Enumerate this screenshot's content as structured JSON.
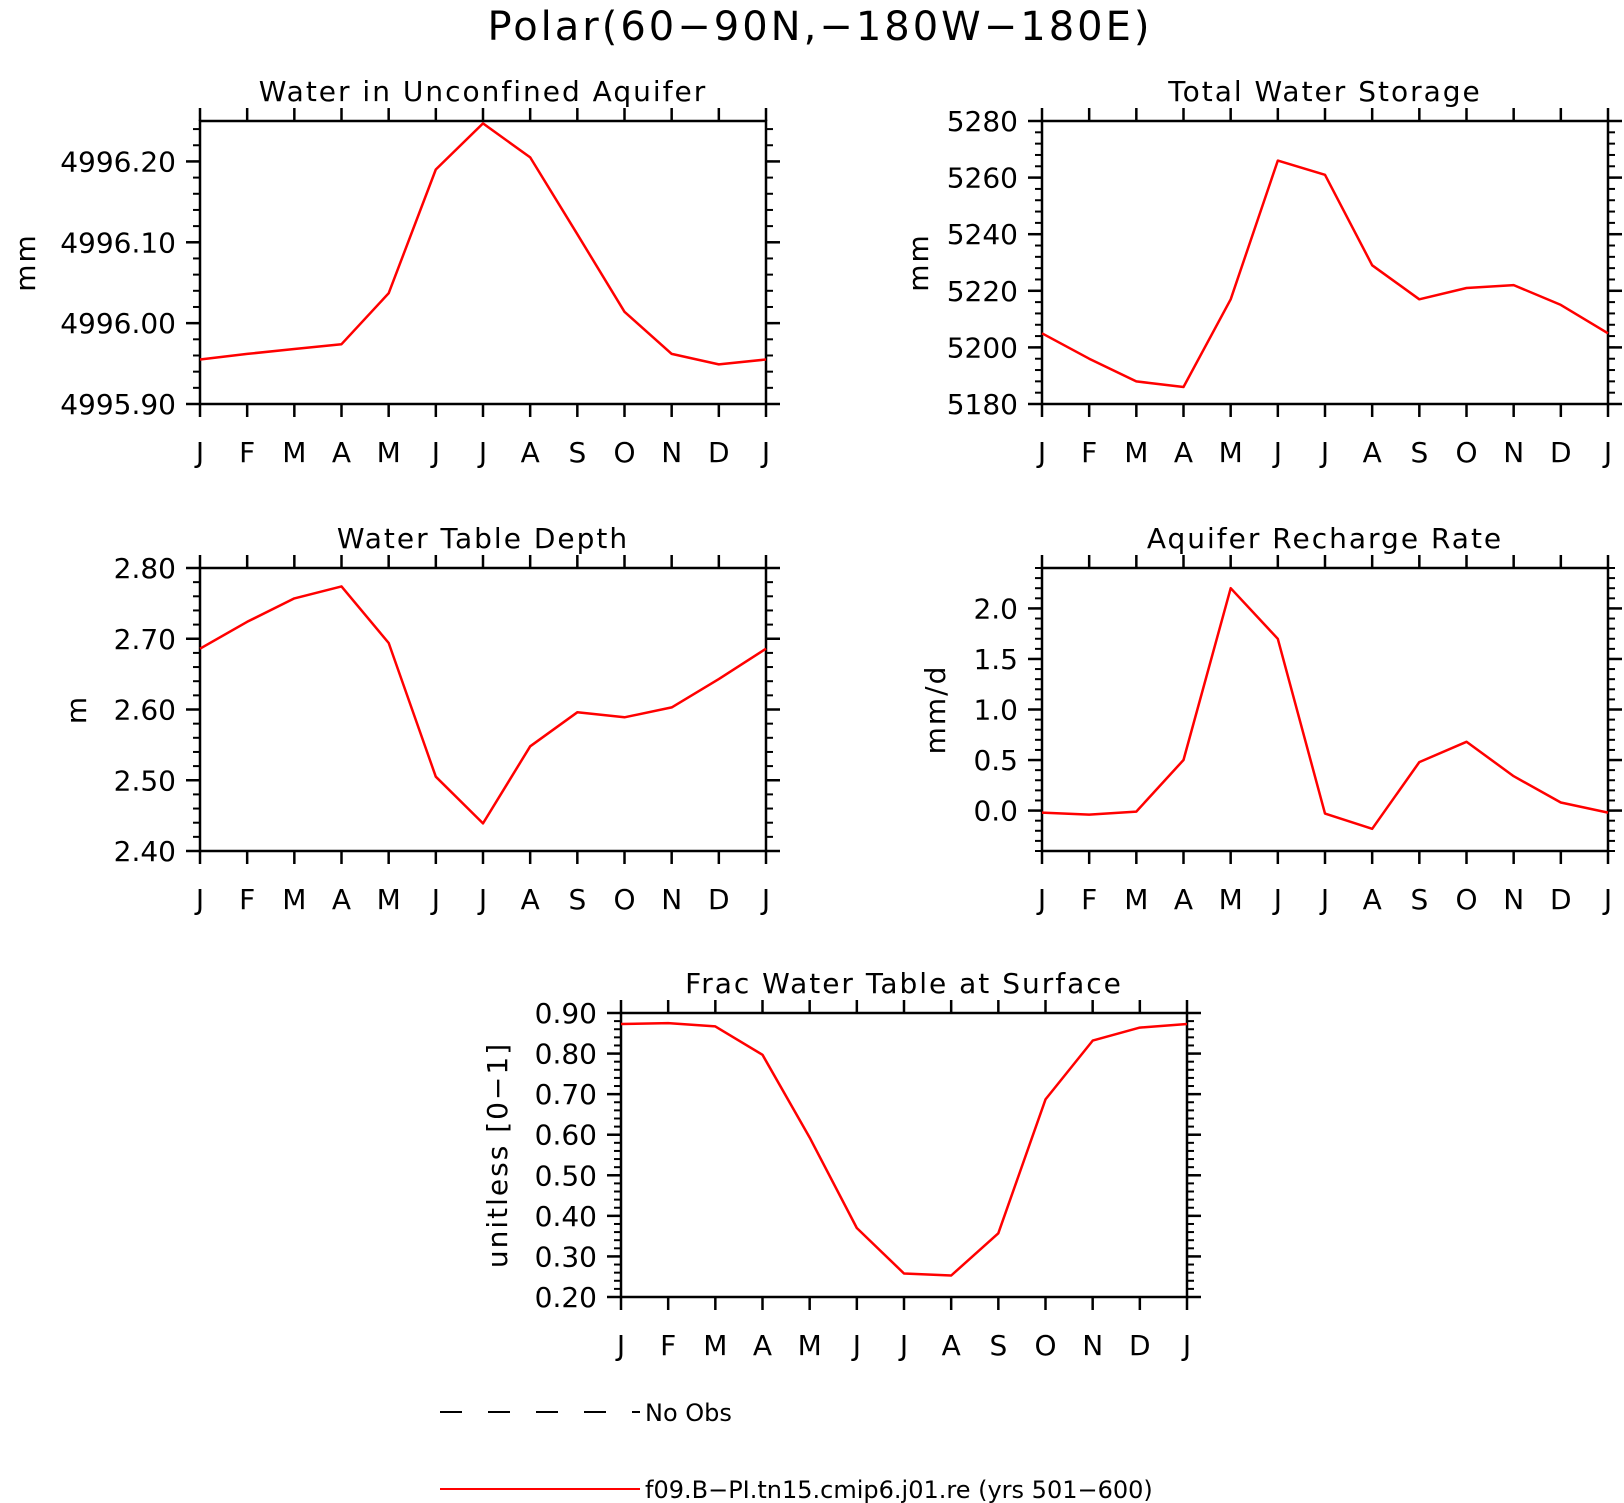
{
  "page_title": "Polar(60−90N,−180W−180E)",
  "chart_data": [
    {
      "type": "line",
      "title": "Water in Unconfined Aquifer",
      "ylabel": "mm",
      "xlabel": "",
      "categories": [
        "J",
        "F",
        "M",
        "A",
        "M",
        "J",
        "J",
        "A",
        "S",
        "O",
        "N",
        "D",
        "J"
      ],
      "yticks": [
        4995.9,
        4996.0,
        4996.1,
        4996.2
      ],
      "ytick_labels": [
        "4995.90",
        "4996.00",
        "4996.10",
        "4996.20"
      ],
      "ylim": [
        4995.9,
        4996.25
      ],
      "series": [
        {
          "color": "#ff0000",
          "values": [
            4995.955,
            4995.962,
            4995.968,
            4995.974,
            4996.037,
            4996.19,
            4996.247,
            4996.205,
            4996.11,
            4996.014,
            4995.962,
            4995.949,
            4995.955
          ]
        }
      ]
    },
    {
      "type": "line",
      "title": "Total Water Storage",
      "ylabel": "mm",
      "xlabel": "",
      "categories": [
        "J",
        "F",
        "M",
        "A",
        "M",
        "J",
        "J",
        "A",
        "S",
        "O",
        "N",
        "D",
        "J"
      ],
      "yticks": [
        5180,
        5200,
        5220,
        5240,
        5260,
        5280
      ],
      "ytick_labels": [
        "5180",
        "5200",
        "5220",
        "5240",
        "5260",
        "5280"
      ],
      "ylim": [
        5180,
        5280
      ],
      "series": [
        {
          "color": "#ff0000",
          "values": [
            5205,
            5196,
            5188,
            5186,
            5217,
            5266,
            5261,
            5229,
            5217,
            5221,
            5222,
            5215,
            5205
          ]
        }
      ]
    },
    {
      "type": "line",
      "title": "Water Table Depth",
      "ylabel": "m",
      "xlabel": "",
      "categories": [
        "J",
        "F",
        "M",
        "A",
        "M",
        "J",
        "J",
        "A",
        "S",
        "O",
        "N",
        "D",
        "J"
      ],
      "yticks": [
        2.4,
        2.5,
        2.6,
        2.7,
        2.8
      ],
      "ytick_labels": [
        "2.40",
        "2.50",
        "2.60",
        "2.70",
        "2.80"
      ],
      "ylim": [
        2.4,
        2.8
      ],
      "series": [
        {
          "color": "#ff0000",
          "values": [
            2.686,
            2.724,
            2.757,
            2.774,
            2.694,
            2.505,
            2.439,
            2.548,
            2.596,
            2.589,
            2.603,
            2.643,
            2.686
          ]
        }
      ]
    },
    {
      "type": "line",
      "title": "Aquifer Recharge Rate",
      "ylabel": "mm/d",
      "xlabel": "",
      "categories": [
        "J",
        "F",
        "M",
        "A",
        "M",
        "J",
        "J",
        "A",
        "S",
        "O",
        "N",
        "D",
        "J"
      ],
      "yticks": [
        0.0,
        0.5,
        1.0,
        1.5,
        2.0
      ],
      "ytick_labels": [
        "0.0",
        "0.5",
        "1.0",
        "1.5",
        "2.0"
      ],
      "ylim": [
        -0.4,
        2.4
      ],
      "series": [
        {
          "color": "#ff0000",
          "values": [
            -0.02,
            -0.04,
            -0.01,
            0.5,
            2.2,
            1.7,
            -0.03,
            -0.18,
            0.48,
            0.68,
            0.34,
            0.08,
            -0.02
          ]
        }
      ]
    },
    {
      "type": "line",
      "title": "Frac Water Table at Surface",
      "ylabel": "unitless [0−1]",
      "xlabel": "",
      "categories": [
        "J",
        "F",
        "M",
        "A",
        "M",
        "J",
        "J",
        "A",
        "S",
        "O",
        "N",
        "D",
        "J"
      ],
      "yticks": [
        0.2,
        0.3,
        0.4,
        0.5,
        0.6,
        0.7,
        0.8,
        0.9
      ],
      "ytick_labels": [
        "0.20",
        "0.30",
        "0.40",
        "0.50",
        "0.60",
        "0.70",
        "0.80",
        "0.90"
      ],
      "ylim": [
        0.2,
        0.9
      ],
      "series": [
        {
          "color": "#ff0000",
          "values": [
            0.873,
            0.875,
            0.867,
            0.797,
            0.593,
            0.37,
            0.258,
            0.253,
            0.357,
            0.687,
            0.832,
            0.864,
            0.873
          ]
        }
      ]
    }
  ],
  "legend": {
    "placement": "bottom",
    "entries": [
      {
        "label": "No Obs",
        "style": "dashed",
        "color": "#000000"
      },
      {
        "label": "f09.B−PI.tn15.cmip6.j01.re (yrs 501−600)",
        "style": "solid",
        "color": "#ff0000"
      }
    ]
  }
}
